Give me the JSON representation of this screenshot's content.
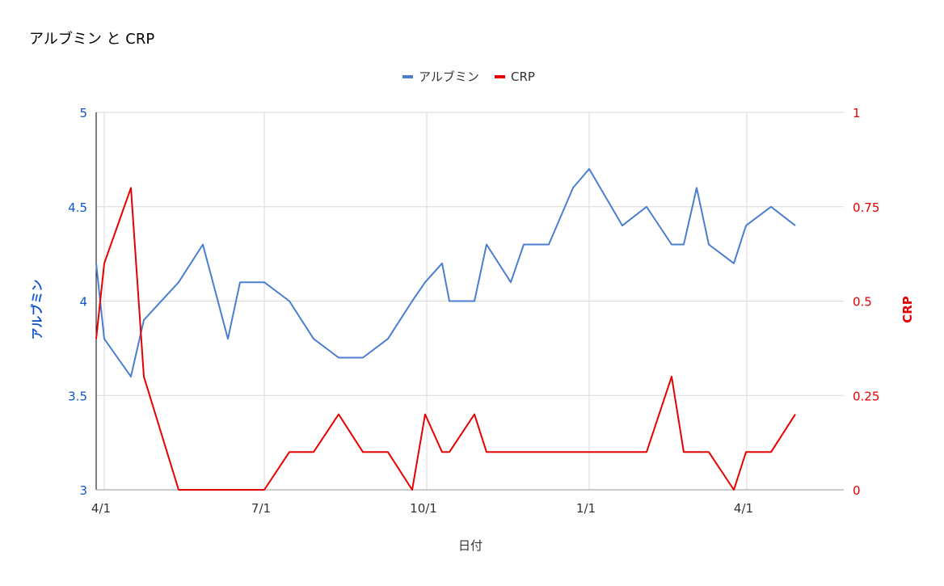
{
  "chart_data": {
    "type": "line",
    "title": "アルブミン と CRP",
    "xlabel": "日付",
    "x": [
      "3/27",
      "3/31",
      "4/14",
      "4/21",
      "5/10",
      "5/24",
      "6/7",
      "6/21",
      "6/28",
      "7/1",
      "7/15",
      "7/29",
      "8/12",
      "8/26",
      "9/9",
      "9/23",
      "10/1",
      "10/10",
      "10/14",
      "10/28",
      "11/4",
      "11/18",
      "11/25",
      "12/9",
      "12/23",
      "1/6",
      "1/20",
      "2/3",
      "2/17",
      "3/3",
      "3/10",
      "3/24",
      "4/7",
      "4/14",
      "5/5",
      "5/19"
    ],
    "x_ticks": [
      "4/1",
      "7/1",
      "10/1",
      "1/1",
      "4/1"
    ],
    "legend_position": "top",
    "grid": true,
    "y_axes": {
      "left": {
        "label": "アルブミン",
        "range": [
          3,
          5
        ],
        "ticks": [
          "3",
          "3.5",
          "4",
          "4.5",
          "5"
        ],
        "color": "#1155cc"
      },
      "right": {
        "label": "CRP",
        "range": [
          0,
          1
        ],
        "ticks": [
          "0",
          "0.25",
          "0.5",
          "0.75",
          "1"
        ],
        "color": "#e60000"
      }
    },
    "series": [
      {
        "name": "アルブミン",
        "axis": "left",
        "color": "#4a7fd0",
        "values": [
          4.2,
          3.8,
          3.6,
          3.9,
          4.1,
          4.3,
          3.8,
          4.1,
          4.1,
          4.1,
          4.0,
          3.8,
          3.7,
          3.7,
          3.8,
          4.0,
          4.1,
          4.2,
          4.0,
          4.0,
          4.3,
          4.1,
          4.3,
          4.3,
          4.6,
          4.7,
          4.4,
          4.5,
          4.3,
          4.3,
          4.6,
          4.3,
          4.2,
          4.4,
          4.5,
          4.4
        ]
      },
      {
        "name": "CRP",
        "axis": "right",
        "color": "#e60000",
        "values": [
          0.4,
          0.6,
          0.8,
          0.3,
          0.0,
          0.0,
          0.0,
          0.0,
          0.0,
          0.0,
          0.1,
          0.1,
          0.2,
          0.1,
          0.1,
          0.0,
          0.2,
          0.1,
          0.1,
          0.2,
          0.1,
          0.1,
          0.1,
          0.1,
          0.1,
          0.1,
          0.1,
          0.1,
          0.3,
          0.1,
          0.1,
          0.1,
          0.0,
          0.1,
          0.1,
          0.2
        ]
      }
    ]
  }
}
